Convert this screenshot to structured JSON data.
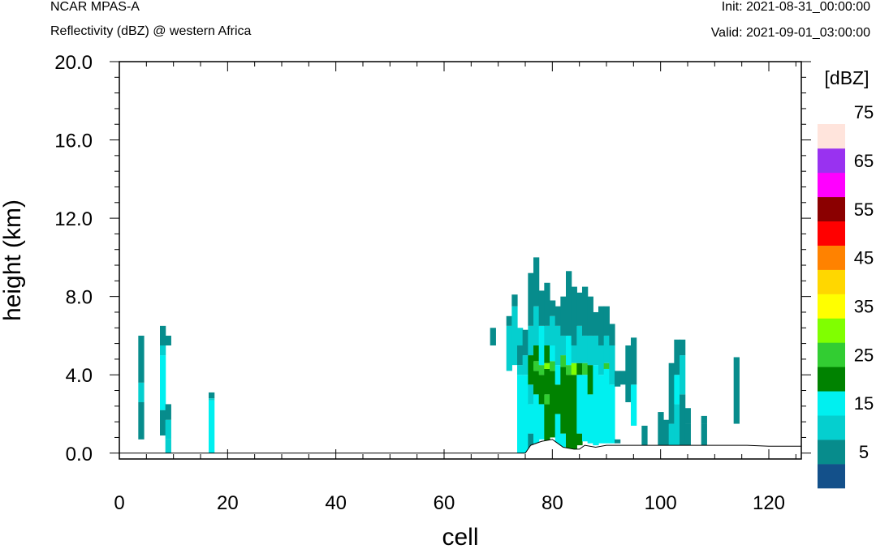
{
  "header": {
    "model": "NCAR MPAS-A",
    "field": "Reflectivity (dBZ) @ western Africa",
    "init": "Init: 2021-08-31_00:00:00",
    "valid": "Valid: 2021-09-01_03:00:00"
  },
  "chart_data": {
    "type": "heatmap",
    "xlabel": "cell",
    "ylabel": "height (km)",
    "xlim": [
      0,
      126
    ],
    "ylim": [
      -0.3,
      20.0
    ],
    "xticks": [
      0,
      20,
      40,
      60,
      80,
      100,
      120
    ],
    "xtick_labels": [
      "0",
      "20",
      "40",
      "60",
      "80",
      "100",
      "120"
    ],
    "yticks": [
      0,
      4,
      8,
      12,
      16,
      20
    ],
    "ytick_labels": [
      "0.0",
      "4.0",
      "8.0",
      "12.0",
      "16.0",
      "20.0"
    ],
    "colorbar": {
      "unit_label": "[dBZ]",
      "levels": [
        0,
        5,
        10,
        15,
        20,
        25,
        30,
        35,
        40,
        45,
        50,
        55,
        60,
        65,
        70,
        75,
        80
      ],
      "tick_labels": [
        "5",
        "15",
        "25",
        "35",
        "45",
        "55",
        "65",
        "75"
      ],
      "colors": [
        "#13508a",
        "#078c8c",
        "#05cfcf",
        "#00f0f0",
        "#008200",
        "#32cd32",
        "#80ff00",
        "#ffff00",
        "#ffd700",
        "#ff8200",
        "#ff0000",
        "#8b0000",
        "#ff00ff",
        "#9932f0",
        "#ffe4dc"
      ]
    },
    "columns": [
      {
        "x": 4,
        "segments": [
          [
            0.7,
            2.6,
            7
          ],
          [
            2.6,
            3.6,
            12
          ],
          [
            3.6,
            6.0,
            7
          ]
        ]
      },
      {
        "x": 8,
        "segments": [
          [
            0.9,
            2.2,
            7
          ],
          [
            2.2,
            5.0,
            17
          ],
          [
            5.0,
            5.5,
            12
          ],
          [
            5.5,
            6.5,
            7
          ]
        ]
      },
      {
        "x": 9,
        "segments": [
          [
            0.0,
            0.7,
            12
          ],
          [
            0.7,
            1.7,
            12
          ],
          [
            1.7,
            2.5,
            7
          ],
          [
            5.5,
            6.0,
            7
          ]
        ]
      },
      {
        "x": 17,
        "segments": [
          [
            0.0,
            2.7,
            17
          ],
          [
            2.7,
            2.8,
            12
          ],
          [
            2.8,
            3.1,
            7
          ]
        ]
      },
      {
        "x": 69,
        "segments": [
          [
            5.5,
            6.4,
            7
          ]
        ]
      },
      {
        "x": 72,
        "segments": [
          [
            4.2,
            6.5,
            12
          ],
          [
            6.5,
            7.0,
            7
          ]
        ]
      },
      {
        "x": 73,
        "segments": [
          [
            4.5,
            7.5,
            12
          ],
          [
            7.5,
            8.1,
            7
          ]
        ]
      },
      {
        "x": 74,
        "segments": [
          [
            0.0,
            4.0,
            17
          ],
          [
            4.0,
            4.5,
            12
          ],
          [
            4.5,
            5.5,
            7
          ],
          [
            5.5,
            6.4,
            12
          ]
        ]
      },
      {
        "x": 75,
        "segments": [
          [
            0.0,
            4.0,
            17
          ],
          [
            4.0,
            5.0,
            12
          ],
          [
            5.0,
            6.3,
            7
          ]
        ]
      },
      {
        "x": 76,
        "segments": [
          [
            0.0,
            1.0,
            7
          ],
          [
            1.0,
            2.5,
            17
          ],
          [
            2.5,
            3.5,
            12
          ],
          [
            3.5,
            5.0,
            22
          ],
          [
            5.0,
            6.5,
            12
          ],
          [
            6.5,
            9.2,
            7
          ]
        ]
      },
      {
        "x": 77,
        "segments": [
          [
            0.5,
            3.0,
            17
          ],
          [
            3.0,
            4.2,
            22
          ],
          [
            4.2,
            4.7,
            27
          ],
          [
            4.7,
            5.5,
            22
          ],
          [
            5.5,
            7.5,
            12
          ],
          [
            7.5,
            10.0,
            7
          ]
        ]
      },
      {
        "x": 78,
        "segments": [
          [
            0.7,
            2.5,
            17
          ],
          [
            2.5,
            4.0,
            22
          ],
          [
            4.0,
            4.5,
            27
          ],
          [
            4.5,
            6.5,
            17
          ],
          [
            6.5,
            8.3,
            7
          ]
        ]
      },
      {
        "x": 79,
        "segments": [
          [
            0.6,
            2.5,
            22
          ],
          [
            2.5,
            3.0,
            27
          ],
          [
            3.0,
            4.3,
            22
          ],
          [
            4.3,
            4.6,
            32
          ],
          [
            4.6,
            5.5,
            22
          ],
          [
            5.5,
            6.5,
            12
          ],
          [
            6.5,
            8.7,
            7
          ]
        ]
      },
      {
        "x": 80,
        "segments": [
          [
            0.8,
            4.2,
            22
          ],
          [
            4.2,
            4.7,
            27
          ],
          [
            4.7,
            5.5,
            17
          ],
          [
            5.5,
            7.0,
            12
          ],
          [
            7.0,
            7.8,
            7
          ]
        ]
      },
      {
        "x": 81,
        "segments": [
          [
            0.3,
            2.0,
            17
          ],
          [
            2.0,
            3.5,
            22
          ],
          [
            3.5,
            4.5,
            17
          ],
          [
            4.5,
            6.5,
            12
          ],
          [
            6.5,
            7.5,
            7
          ]
        ]
      },
      {
        "x": 82,
        "segments": [
          [
            0.3,
            1.0,
            17
          ],
          [
            1.0,
            4.4,
            22
          ],
          [
            4.4,
            5.0,
            27
          ],
          [
            5.0,
            6.0,
            12
          ],
          [
            6.0,
            8.0,
            7
          ]
        ]
      },
      {
        "x": 83,
        "segments": [
          [
            0.2,
            4.0,
            22
          ],
          [
            4.0,
            4.5,
            27
          ],
          [
            4.5,
            6.0,
            17
          ],
          [
            6.0,
            9.3,
            7
          ]
        ]
      },
      {
        "x": 84,
        "segments": [
          [
            0.2,
            4.0,
            22
          ],
          [
            4.0,
            4.6,
            32
          ],
          [
            4.6,
            5.5,
            12
          ],
          [
            5.5,
            8.5,
            7
          ]
        ]
      },
      {
        "x": 85,
        "segments": [
          [
            0.4,
            1.0,
            22
          ],
          [
            1.0,
            4.0,
            17
          ],
          [
            4.0,
            4.6,
            22
          ],
          [
            4.6,
            6.5,
            12
          ],
          [
            6.5,
            8.2,
            7
          ]
        ]
      },
      {
        "x": 86,
        "segments": [
          [
            0.6,
            4.0,
            17
          ],
          [
            4.0,
            4.6,
            27
          ],
          [
            4.6,
            6.0,
            12
          ],
          [
            6.0,
            8.5,
            7
          ]
        ]
      },
      {
        "x": 87,
        "segments": [
          [
            0.5,
            3.0,
            17
          ],
          [
            3.0,
            4.5,
            22
          ],
          [
            4.5,
            6.0,
            12
          ],
          [
            6.0,
            8.0,
            7
          ]
        ]
      },
      {
        "x": 88,
        "segments": [
          [
            0.4,
            4.5,
            17
          ],
          [
            4.5,
            6.0,
            12
          ],
          [
            6.0,
            7.2,
            7
          ]
        ]
      },
      {
        "x": 89,
        "segments": [
          [
            0.5,
            4.0,
            17
          ],
          [
            4.0,
            5.5,
            12
          ],
          [
            5.5,
            7.5,
            7
          ]
        ]
      },
      {
        "x": 90,
        "segments": [
          [
            0.5,
            4.3,
            17
          ],
          [
            4.3,
            4.6,
            27
          ],
          [
            4.6,
            6.0,
            12
          ],
          [
            6.0,
            7.5,
            7
          ]
        ]
      },
      {
        "x": 91,
        "segments": [
          [
            0.5,
            3.5,
            17
          ],
          [
            3.5,
            5.5,
            12
          ],
          [
            5.5,
            6.6,
            7
          ]
        ]
      },
      {
        "x": 92,
        "segments": [
          [
            0.5,
            0.7,
            7
          ],
          [
            3.4,
            4.2,
            7
          ]
        ]
      },
      {
        "x": 93,
        "segments": [
          [
            3.5,
            4.2,
            7
          ]
        ]
      },
      {
        "x": 94,
        "segments": [
          [
            2.6,
            5.5,
            7
          ]
        ]
      },
      {
        "x": 95,
        "segments": [
          [
            1.4,
            3.5,
            17
          ],
          [
            3.5,
            5.9,
            7
          ]
        ]
      },
      {
        "x": 97,
        "segments": [
          [
            0.4,
            1.4,
            7
          ]
        ]
      },
      {
        "x": 100,
        "segments": [
          [
            0.4,
            2.1,
            7
          ]
        ]
      },
      {
        "x": 101,
        "segments": [
          [
            0.4,
            1.7,
            7
          ]
        ]
      },
      {
        "x": 102,
        "segments": [
          [
            0.4,
            1.5,
            12
          ],
          [
            1.5,
            4.6,
            7
          ]
        ]
      },
      {
        "x": 103,
        "segments": [
          [
            0.4,
            2.5,
            12
          ],
          [
            2.5,
            4.0,
            17
          ],
          [
            4.0,
            5.8,
            7
          ]
        ]
      },
      {
        "x": 104,
        "segments": [
          [
            0.4,
            3.0,
            7
          ],
          [
            3.0,
            5.0,
            12
          ],
          [
            5.0,
            5.8,
            7
          ]
        ]
      },
      {
        "x": 105,
        "segments": [
          [
            0.4,
            1.5,
            7
          ],
          [
            1.5,
            2.3,
            7
          ]
        ]
      },
      {
        "x": 108,
        "segments": [
          [
            0.4,
            1.5,
            7
          ],
          [
            1.5,
            1.9,
            7
          ]
        ]
      },
      {
        "x": 114,
        "segments": [
          [
            1.5,
            4.9,
            7
          ]
        ]
      }
    ],
    "terrain": {
      "x": [
        0,
        72,
        75,
        76,
        78,
        80,
        81,
        82,
        84,
        85,
        86,
        88,
        90,
        93,
        96,
        100,
        104,
        108,
        112,
        116,
        120,
        126
      ],
      "y": [
        0.0,
        0.0,
        0.0,
        0.4,
        0.6,
        0.7,
        0.5,
        0.3,
        0.2,
        0.2,
        0.4,
        0.3,
        0.4,
        0.4,
        0.4,
        0.4,
        0.4,
        0.4,
        0.4,
        0.4,
        0.35,
        0.35
      ]
    }
  }
}
